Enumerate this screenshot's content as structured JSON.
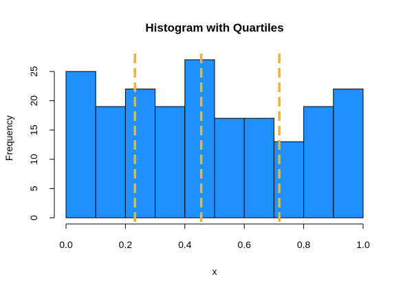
{
  "chart_data": {
    "type": "bar",
    "title": "Histogram with Quartiles",
    "xlabel": "x",
    "ylabel": "Frequency",
    "bins": [
      {
        "from": 0.0,
        "to": 0.1,
        "count": 25
      },
      {
        "from": 0.1,
        "to": 0.2,
        "count": 19
      },
      {
        "from": 0.2,
        "to": 0.3,
        "count": 22
      },
      {
        "from": 0.3,
        "to": 0.4,
        "count": 19
      },
      {
        "from": 0.4,
        "to": 0.5,
        "count": 27
      },
      {
        "from": 0.5,
        "to": 0.6,
        "count": 17
      },
      {
        "from": 0.6,
        "to": 0.7,
        "count": 17
      },
      {
        "from": 0.7,
        "to": 0.8,
        "count": 13
      },
      {
        "from": 0.8,
        "to": 0.9,
        "count": 19
      },
      {
        "from": 0.9,
        "to": 1.0,
        "count": 22
      }
    ],
    "quartile_lines": [
      0.232,
      0.455,
      0.718
    ],
    "xlim": [
      0,
      1
    ],
    "ylim": [
      0,
      25
    ],
    "x_ticks": [
      "0.0",
      "0.2",
      "0.4",
      "0.6",
      "0.8",
      "1.0"
    ],
    "y_ticks": [
      "0",
      "5",
      "10",
      "15",
      "20",
      "25"
    ],
    "bar_color": "#1E90FF",
    "bar_border_color": "#000000",
    "quartile_line_color": "#F0B429",
    "quartile_line_style": "dashed",
    "grid": false,
    "legend": "none"
  }
}
